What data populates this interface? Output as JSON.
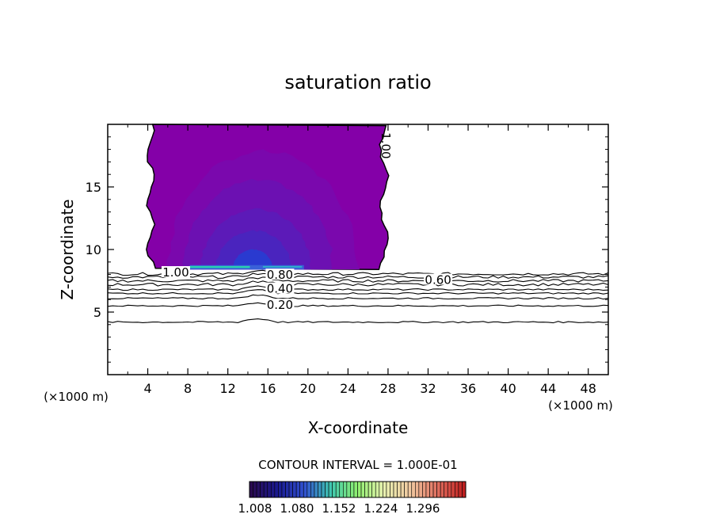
{
  "chart_data": {
    "type": "contour",
    "title": "saturation ratio",
    "xlabel": "X-coordinate",
    "ylabel": "Z-coordinate",
    "x_unit_label": "(×1000 m)",
    "x_unit_label_right": "(×1000 m)",
    "xlim": [
      0,
      50
    ],
    "ylim": [
      0,
      20
    ],
    "x_ticks": [
      "4",
      "8",
      "12",
      "16",
      "20",
      "24",
      "28",
      "32",
      "36",
      "40",
      "44",
      "48"
    ],
    "y_ticks": [
      "5",
      "10",
      "15"
    ],
    "contour_interval_text": "CONTOUR INTERVAL = 1.000E-01",
    "contour_labels": [
      {
        "text": "1.00",
        "x": 6.8,
        "z": 8.1
      },
      {
        "text": "0.80",
        "x": 17.2,
        "z": 7.9
      },
      {
        "text": "0.40",
        "x": 17.2,
        "z": 6.8
      },
      {
        "text": "0.20",
        "x": 17.2,
        "z": 5.5
      },
      {
        "text": "0.60",
        "x": 33.0,
        "z": 7.5
      },
      {
        "text": "1.00",
        "x": 27.7,
        "z": 18.3
      }
    ],
    "contour_levels_below": [
      0.2,
      0.3,
      0.4,
      0.5,
      0.6,
      0.7,
      0.8,
      0.9
    ],
    "contour_lines": [
      {
        "level": 0.9,
        "z": 8.05
      },
      {
        "level": 0.8,
        "z": 7.8
      },
      {
        "level": 0.7,
        "z": 7.5
      },
      {
        "level": 0.6,
        "z": 7.2
      },
      {
        "level": 0.5,
        "z": 6.8
      },
      {
        "level": 0.4,
        "z": 6.5
      },
      {
        "level": 0.3,
        "z": 6.1
      },
      {
        "level": 0.2,
        "z": 5.5
      },
      {
        "level": 0.1,
        "z": 4.2
      }
    ],
    "supersaturated_region": {
      "x_range": [
        4.0,
        27.8
      ],
      "z_range": [
        8.4,
        20.0
      ],
      "max_center": {
        "x": 14.5,
        "z": 8.6
      }
    },
    "colorbar": {
      "ticks": [
        "1.008",
        "1.080",
        "1.152",
        "1.224",
        "1.296"
      ],
      "colors": [
        "#2a0a50",
        "#1a1a90",
        "#3050d0",
        "#40c8b0",
        "#90f070",
        "#e8f0b0",
        "#f0c8a0",
        "#e07060",
        "#c02020"
      ]
    },
    "fill_colors": [
      "#8400a8",
      "#7a08ad",
      "#6c10b2",
      "#5c1ab8",
      "#4a24be",
      "#2a3ad0",
      "#28d0b0"
    ]
  }
}
